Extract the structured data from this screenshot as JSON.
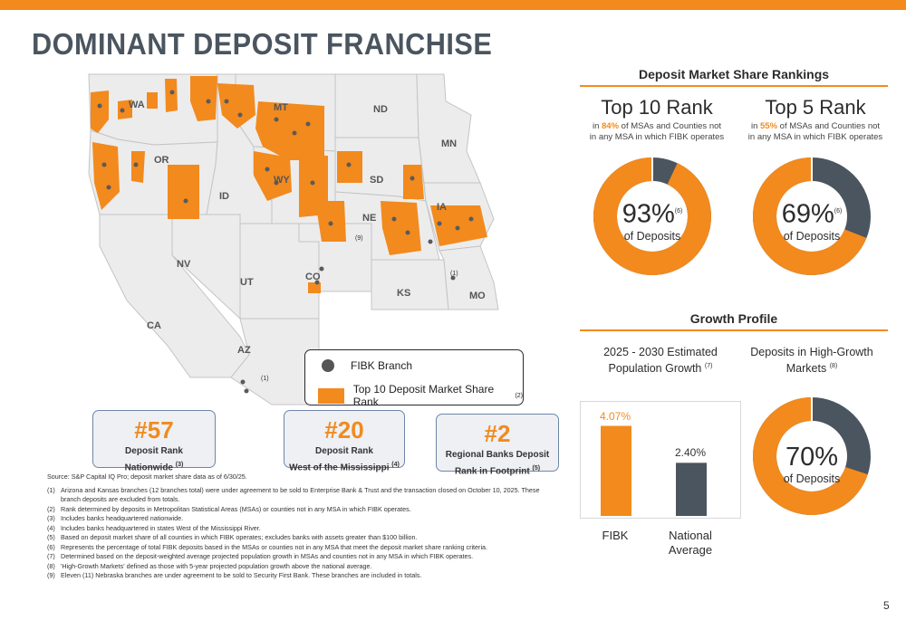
{
  "slide": {
    "title": "DOMINANT DEPOSIT FRANCHISE",
    "page_number": "5"
  },
  "map": {
    "state_labels": [
      "WA",
      "MT",
      "ND",
      "MN",
      "OR",
      "WY",
      "SD",
      "ID",
      "NE",
      "IA",
      "NV",
      "UT",
      "CO",
      "KS",
      "MO",
      "CA",
      "AZ"
    ],
    "footnote_marks": [
      "(9)",
      "(1)",
      "(1)"
    ]
  },
  "legend": {
    "branch_label": "FIBK Branch",
    "rank_label": "Top 10 Deposit Market Share Rank",
    "rank_note": "(2)"
  },
  "stat_boxes": [
    {
      "value": "#57",
      "line1": "Deposit Rank",
      "line2": "Nationwide",
      "note": "(3)"
    },
    {
      "value": "#20",
      "line1": "Deposit Rank",
      "line2": "West of the Mississippi",
      "note": "(4)"
    },
    {
      "value": "#2",
      "line1": "Regional Banks Deposit",
      "line2": "Rank in Footprint",
      "note": "(5)"
    }
  ],
  "footnotes": {
    "source": "Source: S&P Capital IQ Pro; deposit market share data as of 6/30/25.",
    "items": [
      {
        "num": "(1)",
        "text": "Arizona and Kansas branches (12 branches total) were under agreement to be sold to Enterprise Bank & Trust and the transaction closed on October 10, 2025. These branch deposits are excluded from totals."
      },
      {
        "num": "(2)",
        "text": "Rank determined by deposits in Metropolitan Statistical Areas (MSAs) or counties not in any MSA in which FIBK operates."
      },
      {
        "num": "(3)",
        "text": "Includes banks headquartered nationwide."
      },
      {
        "num": "(4)",
        "text": "Includes banks headquartered in states West of the Mississippi River."
      },
      {
        "num": "(5)",
        "text": "Based on deposit market share of all counties in which FIBK operates; excludes banks with assets greater than $100 billion."
      },
      {
        "num": "(6)",
        "text": "Represents the percentage of total FIBK deposits based in the MSAs or counties not in any MSA that meet the deposit market share ranking criteria."
      },
      {
        "num": "(7)",
        "text": "Determined based on the deposit-weighted average projected population growth in MSAs and counties not in any MSA in which FIBK operates."
      },
      {
        "num": "(8)",
        "text": "'High-Growth Markets' defined as those with 5-year projected population growth above the national average."
      },
      {
        "num": "(9)",
        "text": "Eleven (11) Nebraska branches are under agreement to be sold to Security First Bank. These branches are included in totals."
      }
    ]
  },
  "deposit_rankings": {
    "section_title": "Deposit Market Share Rankings",
    "top10": {
      "title": "Top 10 Rank",
      "sub_pre": "in ",
      "sub_pct": "84%",
      "sub_post": " of MSAs and Counties not",
      "sub_line2": "in any MSA in which FIBK operates",
      "value": 0.93,
      "pct_label": "93%",
      "note": "(6)",
      "center_label": "of Deposits"
    },
    "top5": {
      "title": "Top 5 Rank",
      "sub_pre": "in ",
      "sub_pct": "55%",
      "sub_post": " of MSAs and Counties not",
      "sub_line2": "in any MSA in which FIBK operates",
      "value": 0.69,
      "pct_label": "69%",
      "note": "(6)",
      "center_label": "of Deposits"
    }
  },
  "growth_profile": {
    "section_title": "Growth Profile",
    "population_growth": {
      "title_line1": "2025 - 2030 Estimated",
      "title_line2": "Population Growth",
      "note": "(7)"
    },
    "high_growth": {
      "title_line1": "Deposits in High-Growth",
      "title_line2": "Markets",
      "note": "(8)",
      "value": 0.7,
      "pct_label": "70%",
      "center_label": "of Deposits"
    }
  },
  "chart_data": {
    "type": "bar",
    "categories": [
      "FIBK",
      "National Average"
    ],
    "category_lines": [
      [
        "FIBK"
      ],
      [
        "National",
        "Average"
      ]
    ],
    "values": [
      4.07,
      2.4
    ],
    "value_labels": [
      "4.07%",
      "2.40%"
    ],
    "colors": [
      "#f28a1e",
      "#4a5560"
    ],
    "ylim": [
      0,
      4.5
    ]
  },
  "colors": {
    "accent": "#f28a1e",
    "dark": "#4a5560",
    "map_fill": "#ececec"
  }
}
